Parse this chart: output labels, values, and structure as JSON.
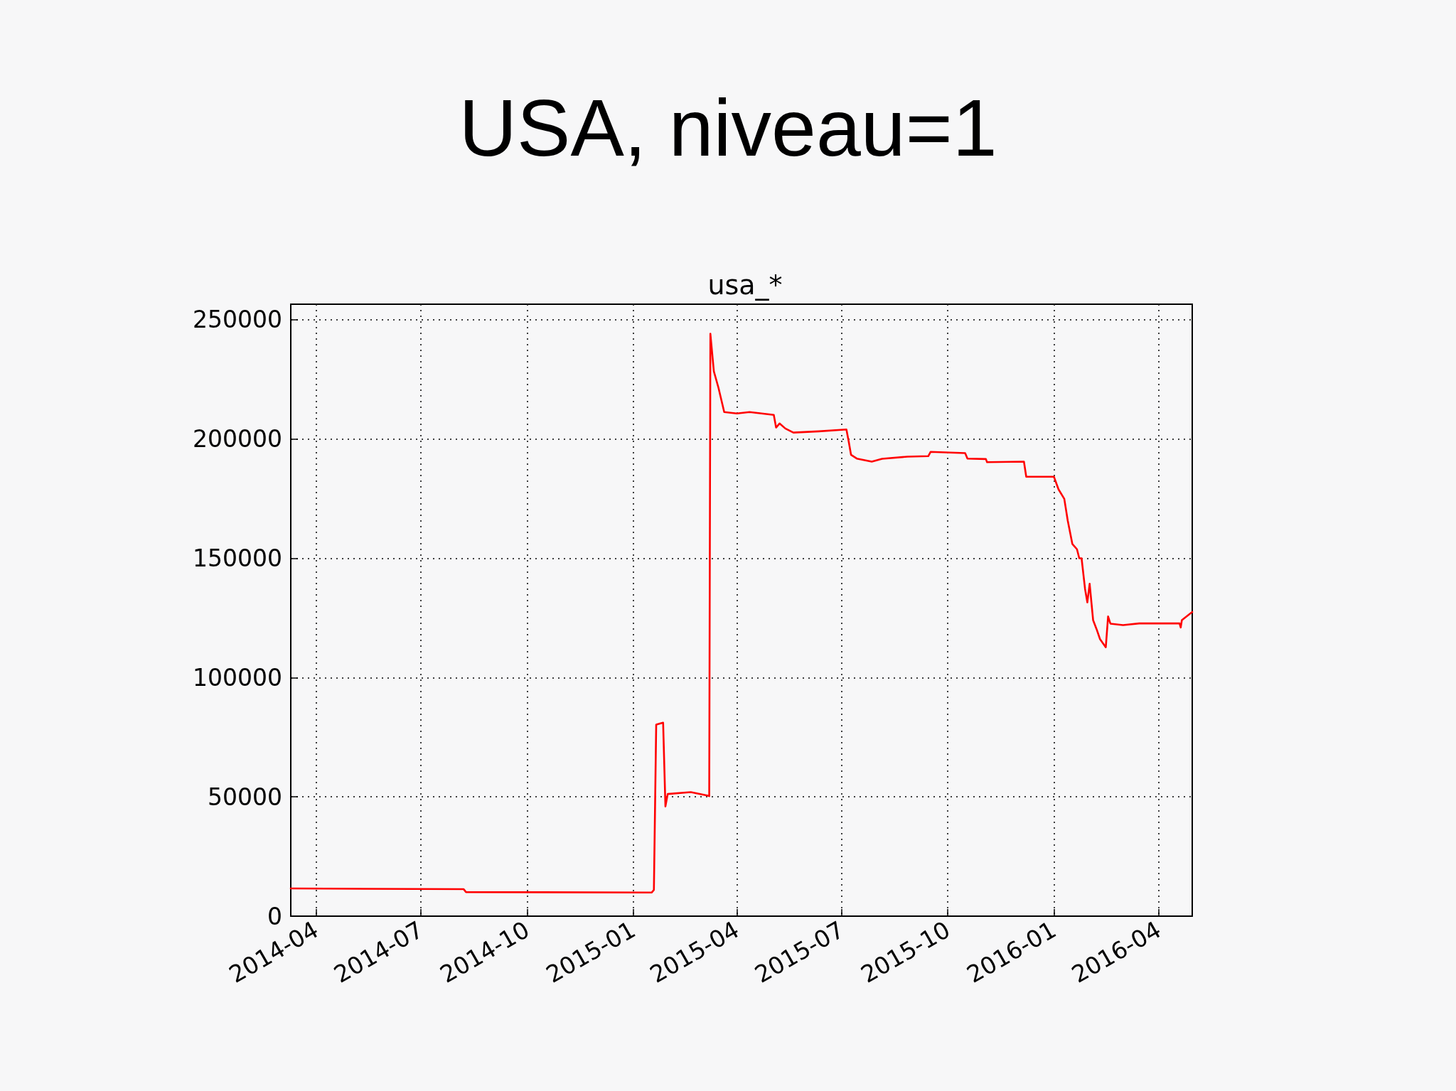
{
  "chart_data": {
    "type": "line",
    "title": "USA, niveau=1",
    "subtitle": "usa_*",
    "x": [
      "2014-03-10",
      "2014-08-07",
      "2014-08-09",
      "2015-01-17",
      "2015-01-19",
      "2015-01-21",
      "2015-01-27",
      "2015-01-29",
      "2015-01-31",
      "2015-02-20",
      "2015-03-07",
      "2015-03-08",
      "2015-03-09",
      "2015-03-12",
      "2015-03-16",
      "2015-03-21",
      "2015-04-01",
      "2015-04-12",
      "2015-05-03",
      "2015-05-05",
      "2015-05-08",
      "2015-05-13",
      "2015-05-20",
      "2015-06-11",
      "2015-07-05",
      "2015-07-07",
      "2015-07-09",
      "2015-07-14",
      "2015-07-27",
      "2015-08-05",
      "2015-08-27",
      "2015-09-14",
      "2015-09-16",
      "2015-10-16",
      "2015-10-18",
      "2015-11-03",
      "2015-11-04",
      "2015-12-06",
      "2015-12-08",
      "2016-01-01",
      "2016-01-05",
      "2016-01-10",
      "2016-01-13",
      "2016-01-17",
      "2016-01-21",
      "2016-01-23",
      "2016-01-25",
      "2016-01-28",
      "2016-01-30",
      "2016-02-01",
      "2016-02-04",
      "2016-02-07",
      "2016-02-10",
      "2016-02-15",
      "2016-02-17",
      "2016-02-19",
      "2016-03-01",
      "2016-03-15",
      "2016-04-19",
      "2016-04-20",
      "2016-04-21",
      "2016-04-30"
    ],
    "values": [
      11600,
      11300,
      10100,
      9900,
      11000,
      80300,
      81100,
      46000,
      51200,
      52000,
      50500,
      50300,
      244100,
      228400,
      221500,
      211300,
      210700,
      211300,
      210100,
      204800,
      206500,
      204400,
      202700,
      203200,
      204000,
      198900,
      193400,
      191800,
      190500,
      191700,
      192600,
      192800,
      194600,
      194100,
      191800,
      191600,
      190300,
      190500,
      184200,
      184200,
      178900,
      174900,
      165800,
      156000,
      153800,
      150000,
      150000,
      137200,
      131500,
      139300,
      124100,
      120300,
      116100,
      112700,
      125600,
      122600,
      122000,
      122700,
      122700,
      121000,
      124100,
      127500
    ],
    "color": "#ff0000",
    "marker": "none",
    "xlim": [
      "2014-03-10",
      "2016-04-30"
    ],
    "xticks": [
      "2014-04",
      "2014-07",
      "2014-10",
      "2015-01",
      "2015-04",
      "2015-07",
      "2015-10",
      "2016-01",
      "2016-04"
    ],
    "ylim": [
      0,
      256500
    ],
    "yticks": [
      0,
      50000,
      100000,
      150000,
      200000,
      250000
    ],
    "grid": true
  }
}
